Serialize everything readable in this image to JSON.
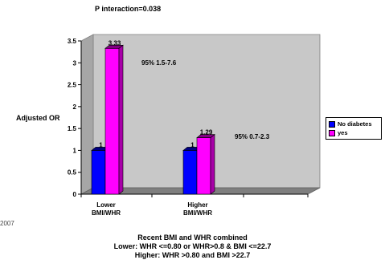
{
  "chart_data": {
    "type": "bar",
    "title": "P interaction=0.038",
    "ylabel": "Adjusted OR",
    "xlabel": "",
    "categories": [
      "Lower\nBMI/WHR",
      "Higher\nBMI/WHR"
    ],
    "series": [
      {
        "name": "No diabetes",
        "values": [
          1,
          1
        ],
        "color": "#0000ff"
      },
      {
        "name": "yes",
        "values": [
          3.33,
          1.29
        ],
        "color": "#ff00ff"
      }
    ],
    "data_labels": [
      [
        "1",
        "3.33"
      ],
      [
        "1",
        "1.29"
      ]
    ],
    "ci_annotations": [
      "95% 1.5-7.6",
      "95% 0.7-2.3"
    ],
    "yticks": [
      "0",
      "0.5",
      "1",
      "1.5",
      "2",
      "2.5",
      "3",
      "3.5"
    ],
    "ylim": [
      0,
      3.5
    ],
    "grid": false,
    "legend_position": "right"
  },
  "footnotes": {
    "year": "2007",
    "line1": "Recent BMI and WHR combined",
    "line2": "Lower: WHR <=0.80 or WHR>0.8 & BMI <=22.7",
    "line3": "Higher: WHR >0.80 and BMI >22.7"
  }
}
